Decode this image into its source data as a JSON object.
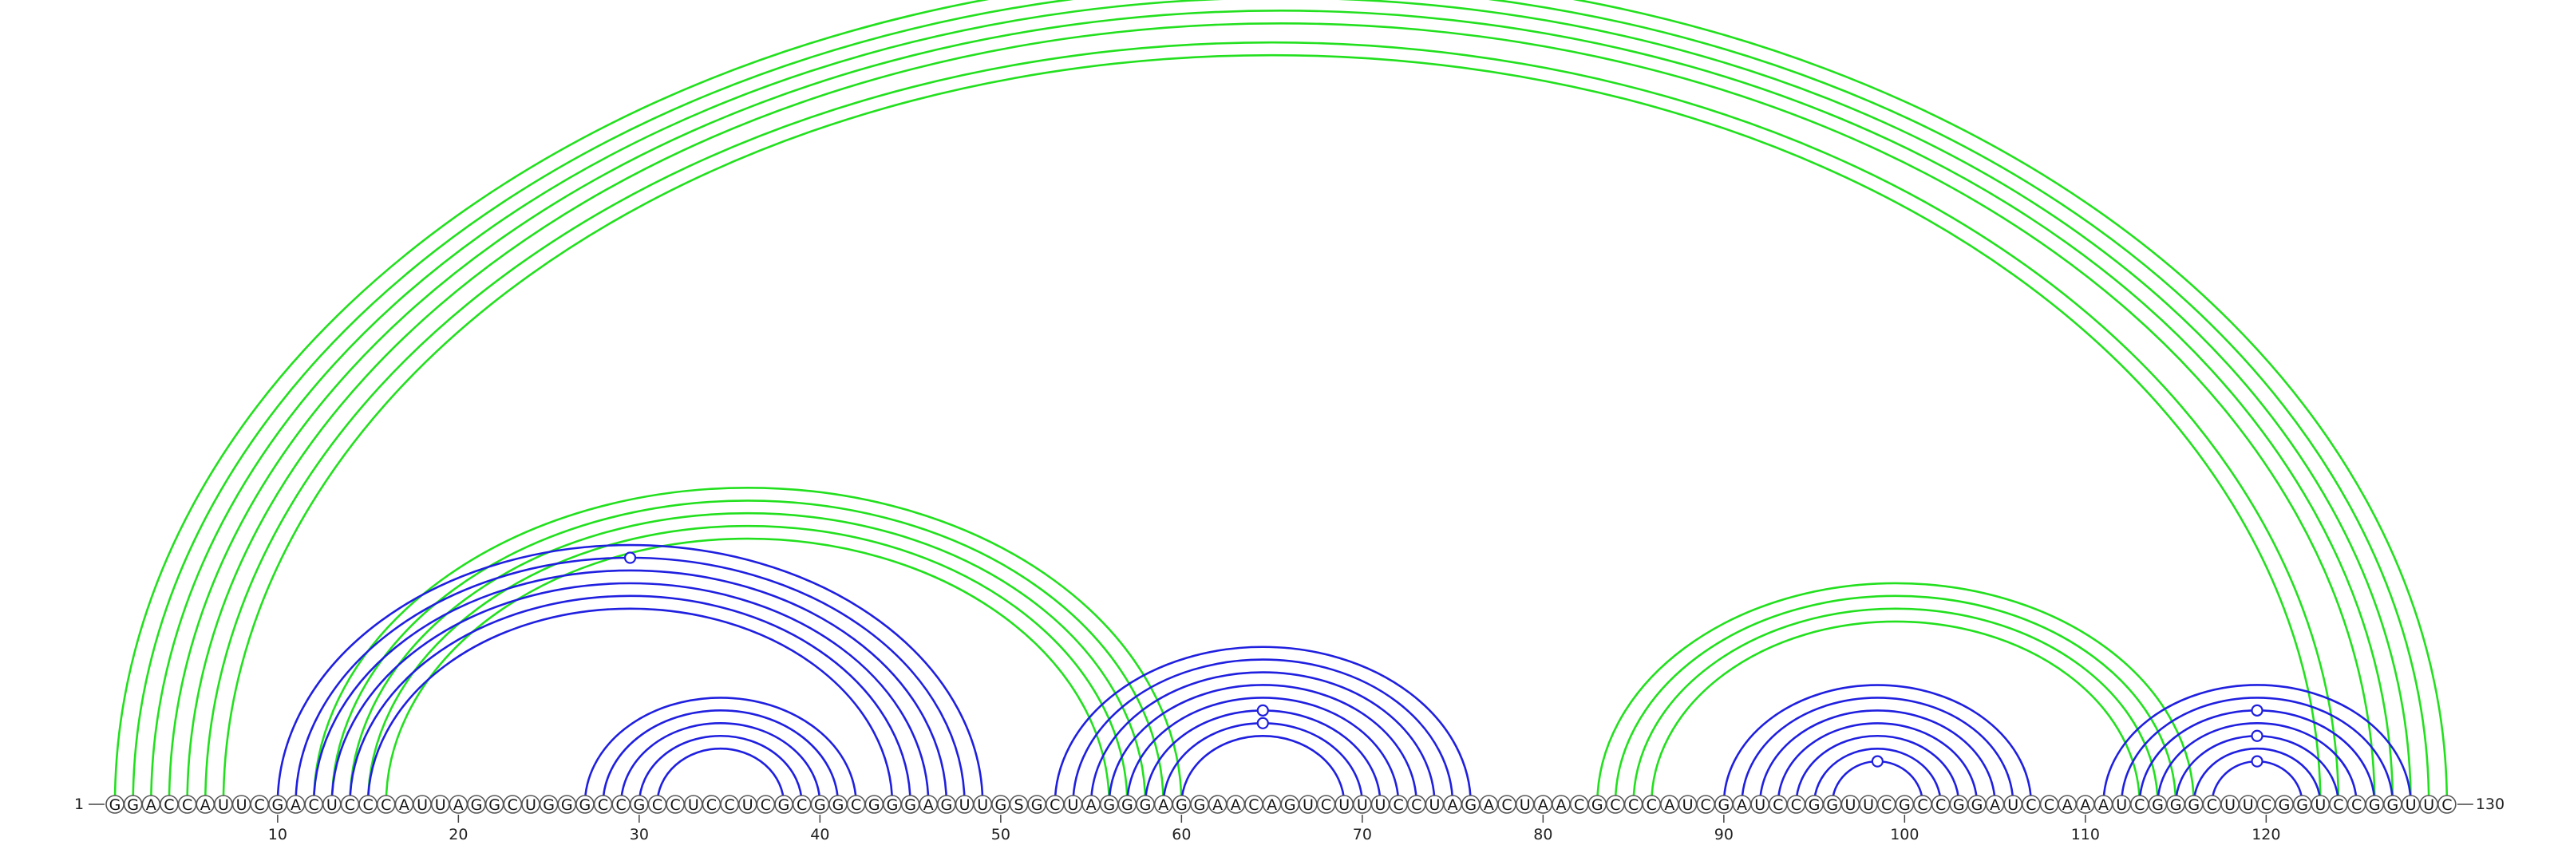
{
  "sequence": "GGACCAUUCGACUCCCAUUAGGCUGGGCCGCCUCCUCGCGGCGGGAGUUGSGCUAGGGAGGAACAGUCUUUCCUAGACUAACGCCCAUCGAUCCGGUUCGCCGGAUCCAAAUCGGGCUUCGGUCCGGUUC",
  "start_label": "1",
  "end_label": "130",
  "tick_labels": [
    "10",
    "20",
    "30",
    "40",
    "50",
    "60",
    "70",
    "80",
    "90",
    "100",
    "110",
    "120"
  ],
  "colors": {
    "green": "#22e01e",
    "blue": "#1f1fe0"
  },
  "arcs": [
    {
      "i": 1,
      "j": 130,
      "color": "green"
    },
    {
      "i": 2,
      "j": 129,
      "color": "green"
    },
    {
      "i": 3,
      "j": 128,
      "color": "green"
    },
    {
      "i": 4,
      "j": 127,
      "color": "green"
    },
    {
      "i": 5,
      "j": 126,
      "color": "green"
    },
    {
      "i": 6,
      "j": 124,
      "color": "green"
    },
    {
      "i": 7,
      "j": 123,
      "color": "green"
    },
    {
      "i": 12,
      "j": 60,
      "color": "green"
    },
    {
      "i": 13,
      "j": 59,
      "color": "green"
    },
    {
      "i": 14,
      "j": 58,
      "color": "green"
    },
    {
      "i": 15,
      "j": 57,
      "color": "green"
    },
    {
      "i": 16,
      "j": 56,
      "color": "green"
    },
    {
      "i": 83,
      "j": 116,
      "color": "green"
    },
    {
      "i": 84,
      "j": 115,
      "color": "green"
    },
    {
      "i": 85,
      "j": 114,
      "color": "green"
    },
    {
      "i": 86,
      "j": 113,
      "color": "green"
    },
    {
      "i": 10,
      "j": 49,
      "color": "blue"
    },
    {
      "i": 11,
      "j": 48,
      "color": "blue"
    },
    {
      "i": 12,
      "j": 47,
      "color": "blue"
    },
    {
      "i": 13,
      "j": 46,
      "color": "blue"
    },
    {
      "i": 14,
      "j": 45,
      "color": "blue"
    },
    {
      "i": 15,
      "j": 44,
      "color": "blue"
    },
    {
      "i": 27,
      "j": 42,
      "color": "blue"
    },
    {
      "i": 28,
      "j": 41,
      "color": "blue"
    },
    {
      "i": 29,
      "j": 40,
      "color": "blue"
    },
    {
      "i": 30,
      "j": 39,
      "color": "blue"
    },
    {
      "i": 31,
      "j": 38,
      "color": "blue"
    },
    {
      "i": 53,
      "j": 76,
      "color": "blue"
    },
    {
      "i": 54,
      "j": 75,
      "color": "blue"
    },
    {
      "i": 55,
      "j": 74,
      "color": "blue"
    },
    {
      "i": 56,
      "j": 73,
      "color": "blue"
    },
    {
      "i": 57,
      "j": 72,
      "color": "blue"
    },
    {
      "i": 58,
      "j": 71,
      "color": "blue"
    },
    {
      "i": 59,
      "j": 70,
      "color": "blue"
    },
    {
      "i": 60,
      "j": 69,
      "color": "blue"
    },
    {
      "i": 90,
      "j": 107,
      "color": "blue"
    },
    {
      "i": 91,
      "j": 106,
      "color": "blue"
    },
    {
      "i": 92,
      "j": 105,
      "color": "blue"
    },
    {
      "i": 93,
      "j": 104,
      "color": "blue"
    },
    {
      "i": 94,
      "j": 103,
      "color": "blue"
    },
    {
      "i": 95,
      "j": 102,
      "color": "blue"
    },
    {
      "i": 96,
      "j": 101,
      "color": "blue"
    },
    {
      "i": 111,
      "j": 128,
      "color": "blue"
    },
    {
      "i": 112,
      "j": 127,
      "color": "blue"
    },
    {
      "i": 113,
      "j": 126,
      "color": "blue"
    },
    {
      "i": 114,
      "j": 125,
      "color": "blue"
    },
    {
      "i": 115,
      "j": 124,
      "color": "blue"
    },
    {
      "i": 116,
      "j": 123,
      "color": "blue"
    },
    {
      "i": 117,
      "j": 122,
      "color": "blue"
    }
  ],
  "markers": [
    {
      "arc_i": 1,
      "arc_j": 130,
      "color": "green"
    },
    {
      "arc_i": 11,
      "arc_j": 48,
      "color": "blue"
    },
    {
      "arc_i": 58,
      "arc_j": 71,
      "color": "blue"
    },
    {
      "arc_i": 59,
      "arc_j": 70,
      "color": "blue"
    },
    {
      "arc_i": 96,
      "arc_j": 101,
      "color": "blue"
    },
    {
      "arc_i": 113,
      "arc_j": 126,
      "color": "blue"
    },
    {
      "arc_i": 115,
      "arc_j": 124,
      "color": "blue"
    },
    {
      "arc_i": 117,
      "arc_j": 122,
      "color": "blue"
    }
  ]
}
